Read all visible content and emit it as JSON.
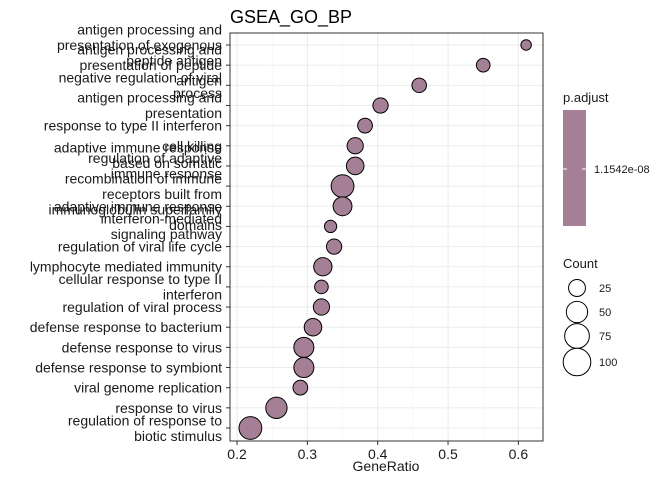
{
  "chart_data": {
    "type": "scatter",
    "title": "GSEA_GO_BP",
    "xlabel": "GeneRatio",
    "ylabel": "",
    "xlim": [
      0.19,
      0.635
    ],
    "x_ticks": [
      "0.2",
      "0.3",
      "0.4",
      "0.5",
      "0.6"
    ],
    "grid": true,
    "point_color": "#a57f95",
    "points": [
      {
        "label": "antigen processing and\npresentation of exogenous\npeptide antigen",
        "x": 0.611,
        "count": 4
      },
      {
        "label": "antigen processing and\npresentation of peptide\nantigen",
        "x": 0.55,
        "count": 12
      },
      {
        "label": "negative regulation of viral\nprocess",
        "x": 0.459,
        "count": 15
      },
      {
        "label": "antigen processing and\npresentation",
        "x": 0.404,
        "count": 18
      },
      {
        "label": "response to type II interferon",
        "x": 0.382,
        "count": 16
      },
      {
        "label": "cell killing",
        "x": 0.368,
        "count": 22
      },
      {
        "label": "regulation of adaptive\nimmune response",
        "x": 0.368,
        "count": 28
      },
      {
        "label": "adaptive immune response\nbased on somatic\nrecombination of immune\nreceptors built from\nimmunoglobulin superfamily\ndomains",
        "x": 0.35,
        "count": 60
      },
      {
        "label": "adaptive immune response",
        "x": 0.35,
        "count": 35
      },
      {
        "label": "interferon-mediated\nsignaling pathway",
        "x": 0.333,
        "count": 8
      },
      {
        "label": "regulation of viral life cycle",
        "x": 0.338,
        "count": 18
      },
      {
        "label": "lymphocyte mediated immunity",
        "x": 0.322,
        "count": 32
      },
      {
        "label": "cellular response to type II\ninterferon",
        "x": 0.32,
        "count": 12
      },
      {
        "label": "regulation of viral process",
        "x": 0.32,
        "count": 22
      },
      {
        "label": "defense response to bacterium",
        "x": 0.308,
        "count": 28
      },
      {
        "label": "defense response to virus",
        "x": 0.295,
        "count": 42
      },
      {
        "label": "defense response to symbiont",
        "x": 0.295,
        "count": 42
      },
      {
        "label": "viral genome replication",
        "x": 0.29,
        "count": 16
      },
      {
        "label": "response to virus",
        "x": 0.256,
        "count": 50
      },
      {
        "label": "regulation of response to\nbiotic stimulus",
        "x": 0.219,
        "count": 60
      }
    ],
    "color_legend": {
      "title": "p.adjust",
      "label": "1.1542e-08"
    },
    "size_legend": {
      "title": "Count",
      "values": [
        25,
        50,
        75,
        100
      ]
    }
  }
}
